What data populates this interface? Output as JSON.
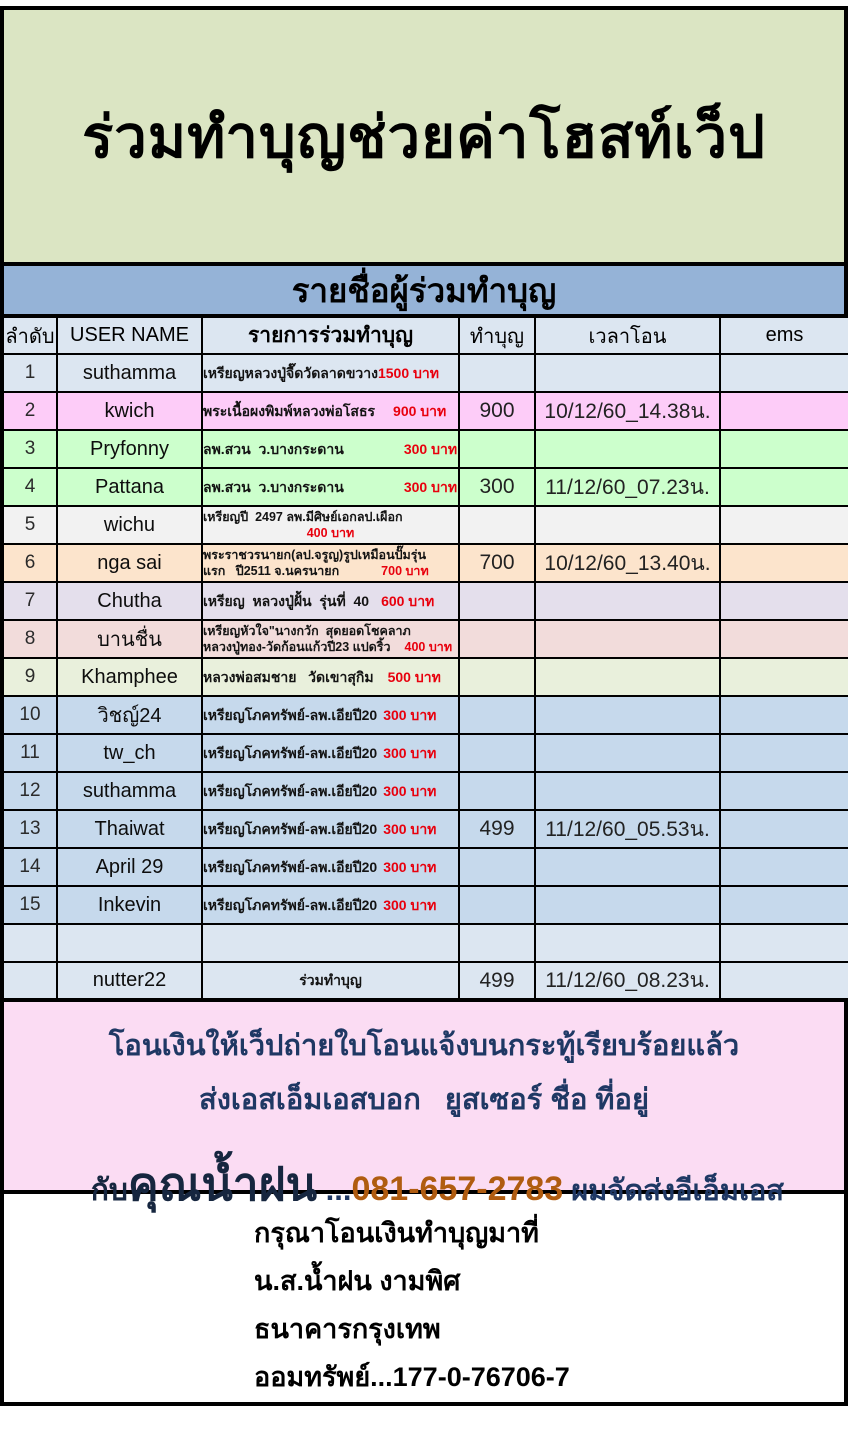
{
  "header": {
    "title": "ร่วมทำบุญช่วยค่าโฮสท์เว็ป",
    "subtitle": "รายชื่อผู้ร่วมทำบุญ"
  },
  "table": {
    "headers": [
      "ลำดับ",
      "USER NAME",
      "รายการร่วมทำบุญ",
      "ทำบุญ",
      "เวลาโอน",
      "ems"
    ],
    "rows": [
      {
        "no": "1",
        "user": "suthamma",
        "bg": "#dce6f1",
        "lines": [
          {
            "text": "เหรียญหลวงปู่จื๊ดวัดลาดขวาง",
            "price": "1500 บาท",
            "gap": 0
          }
        ],
        "donation": "",
        "time": "",
        "ems": ""
      },
      {
        "no": "2",
        "user": "kwich",
        "bg": "#fdccf8",
        "lines": [
          {
            "text": "พระเนื้อผงพิมพ์หลวงพ่อโสธร",
            "price": "900 บาท",
            "gap": 18
          }
        ],
        "donation": "900",
        "time": "10/12/60_14.38น.",
        "ems": ""
      },
      {
        "no": "3",
        "user": "Pryfonny",
        "bg": "#ccffcc",
        "lines": [
          {
            "text": "ลพ.สวน  ว.บางกระดาน",
            "price": "300 บาท",
            "gap": 60
          }
        ],
        "donation": "",
        "time": "",
        "ems": ""
      },
      {
        "no": "4",
        "user": "Pattana",
        "bg": "#ccffcc",
        "lines": [
          {
            "text": "ลพ.สวน  ว.บางกระดาน",
            "price": "300 บาท",
            "gap": 60
          }
        ],
        "donation": "300",
        "time": "11/12/60_07.23น.",
        "ems": ""
      },
      {
        "no": "5",
        "user": "wichu",
        "bg": "#f2f2f2",
        "lines": [
          {
            "text": "เหรียญปี  2497 ลพ.มีศิษย์เอกลป.เผือก",
            "price": "",
            "gap": 0
          },
          {
            "text": "",
            "price": "400 บาท",
            "gap": 0,
            "center": true
          }
        ],
        "donation": "",
        "time": "",
        "ems": ""
      },
      {
        "no": "6",
        "user": "nga sai",
        "bg": "#fce4cc",
        "lines": [
          {
            "text": "พระราชวรนายก(ลป.จรูญ)รูปเหมือนปั๊มรุ่น",
            "price": "",
            "gap": 0
          },
          {
            "text": "แรก   ปี2511 จ.นครนายก",
            "price": "700 บาท",
            "gap": 42
          }
        ],
        "donation": "700",
        "time": "10/12/60_13.40น.",
        "ems": ""
      },
      {
        "no": "7",
        "user": "Chutha",
        "bg": "#e4dfec",
        "lines": [
          {
            "text": "เหรียญ  หลวงปู่ฝั้น  รุ่นที่  40",
            "price": "600 บาท",
            "gap": 12
          }
        ],
        "donation": "",
        "time": "",
        "ems": ""
      },
      {
        "no": "8",
        "user": "บานชื่น",
        "bg": "#f2dcdb",
        "lines": [
          {
            "text": "เหรียญหัวใจ\"นางกวัก  สุดยอดโชคลาภ",
            "price": "",
            "gap": 0
          },
          {
            "text": "หลวงปู่ทอง-วัดก้อนแก้วปี23 แปดริ้ว",
            "price": "400 บาท",
            "gap": 14
          }
        ],
        "donation": "",
        "time": "",
        "ems": ""
      },
      {
        "no": "9",
        "user": "Khamphee",
        "bg": "#e9f0dc",
        "lines": [
          {
            "text": "หลวงพ่อสมชาย   วัดเขาสุกิม",
            "price": "500 บาท",
            "gap": 14
          }
        ],
        "donation": "",
        "time": "",
        "ems": ""
      },
      {
        "no": "10",
        "user": "วิชญ์24",
        "bg": "#c6d9ec",
        "lines": [
          {
            "text": "เหรียญโภคทรัพย์-ลพ.เอียปี20",
            "price": "300 บาท",
            "gap": 6
          }
        ],
        "donation": "",
        "time": "",
        "ems": ""
      },
      {
        "no": "11",
        "user": "tw_ch",
        "bg": "#c6d9ec",
        "lines": [
          {
            "text": "เหรียญโภคทรัพย์-ลพ.เอียปี20",
            "price": "300 บาท",
            "gap": 6
          }
        ],
        "donation": "",
        "time": "",
        "ems": ""
      },
      {
        "no": "12",
        "user": "suthamma",
        "bg": "#c6d9ec",
        "lines": [
          {
            "text": "เหรียญโภคทรัพย์-ลพ.เอียปี20",
            "price": "300 บาท",
            "gap": 6
          }
        ],
        "donation": "",
        "time": "",
        "ems": ""
      },
      {
        "no": "13",
        "user": "Thaiwat",
        "bg": "#c6d9ec",
        "lines": [
          {
            "text": "เหรียญโภคทรัพย์-ลพ.เอียปี20",
            "price": "300 บาท",
            "gap": 6
          }
        ],
        "donation": "499",
        "time": "11/12/60_05.53น.",
        "ems": ""
      },
      {
        "no": "14",
        "user": "April 29",
        "bg": "#c6d9ec",
        "lines": [
          {
            "text": "เหรียญโภคทรัพย์-ลพ.เอียปี20",
            "price": "300 บาท",
            "gap": 6
          }
        ],
        "donation": "",
        "time": "",
        "ems": ""
      },
      {
        "no": "15",
        "user": "Inkevin",
        "bg": "#c6d9ec",
        "lines": [
          {
            "text": "เหรียญโภคทรัพย์-ลพ.เอียปี20",
            "price": "300 บาท",
            "gap": 6
          }
        ],
        "donation": "",
        "time": "",
        "ems": ""
      },
      {
        "no": "",
        "user": "",
        "bg": "#dce6f1",
        "lines": [],
        "donation": "",
        "time": "",
        "ems": ""
      },
      {
        "no": "",
        "user": "nutter22",
        "bg": "#dce6f1",
        "lines": [
          {
            "text": "ร่วมทำบุญ",
            "price": "",
            "gap": 0,
            "center": true
          }
        ],
        "donation": "499",
        "time": "11/12/60_08.23น.",
        "ems": ""
      }
    ]
  },
  "notice": {
    "line1": "โอนเงินให้เว็ปถ่ายใบโอนแจ้งบนกระทู้เรียบร้อยแล้ว",
    "line2": "ส่งเอสเอ็มเอสบอก   ยูสเซอร์ ชื่อ ที่อยู่",
    "line3_prefix": "กับ",
    "line3_name": "คุณน้ำฝน",
    "line3_dots": " ...",
    "line3_phone": "081-657-2783",
    "line3_suffix": " ผมจัดส่งอีเอ็มเอส"
  },
  "bank": {
    "line1": "กรุณาโอนเงินทำบุญมาที่",
    "line2": "น.ส.น้ำฝน งามพิศ",
    "line3": "ธนาคารกรุงเทพ",
    "line4": "ออมทรัพย์...177-0-76706-7"
  },
  "colors": {
    "title_bg": "#dbe5c3",
    "band_bg": "#95b3d7",
    "header_row_bg": "#dce6f1",
    "price_red": "#e8000d",
    "notice_bg": "#fbdcf3",
    "notice_text": "#1f3864",
    "phone_text": "#b05c10"
  }
}
